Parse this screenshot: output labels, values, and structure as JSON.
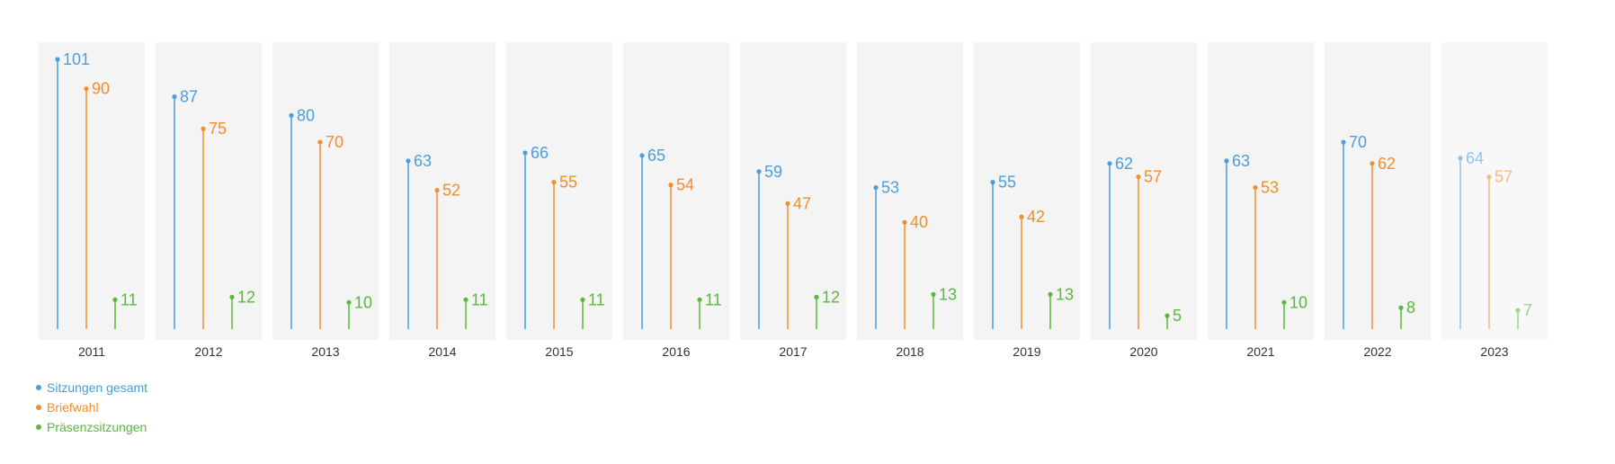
{
  "chart_data": {
    "type": "lollipop",
    "categories": [
      "2011",
      "2012",
      "2013",
      "2014",
      "2015",
      "2016",
      "2017",
      "2018",
      "2019",
      "2020",
      "2021",
      "2022",
      "2023"
    ],
    "series": [
      {
        "name": "Sitzungen gesamt",
        "color": "#4a9ede",
        "values": [
          101,
          87,
          80,
          63,
          66,
          65,
          59,
          53,
          55,
          62,
          63,
          70,
          64
        ]
      },
      {
        "name": "Briefwahl",
        "color": "#f28e2b",
        "values": [
          90,
          75,
          70,
          52,
          55,
          54,
          47,
          40,
          42,
          57,
          53,
          62,
          57
        ]
      },
      {
        "name": "Präsenzsitzungen",
        "color": "#59b93b",
        "values": [
          11,
          12,
          10,
          11,
          11,
          11,
          12,
          13,
          13,
          5,
          10,
          8,
          7
        ]
      }
    ],
    "ylim": [
      0,
      101
    ],
    "grid": false,
    "legend_position": "bottom-left",
    "panel_background": "#f4f4f4",
    "faded_category": "2023"
  }
}
